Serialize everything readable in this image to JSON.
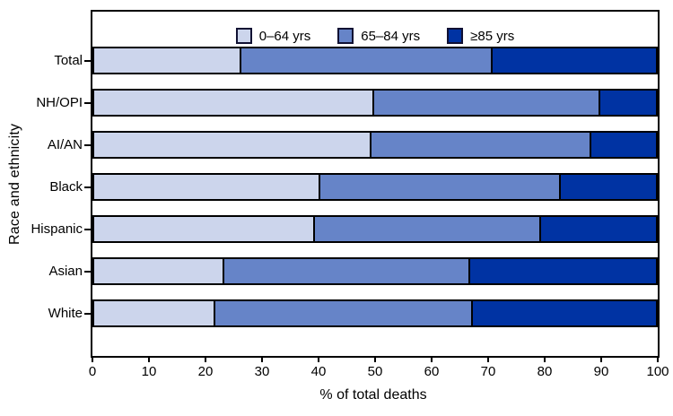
{
  "chart_data": {
    "type": "bar",
    "orientation": "horizontal",
    "stacked": true,
    "title": "",
    "xlabel": "% of total deaths",
    "ylabel": "Race and ethnicity",
    "xlim": [
      0,
      100
    ],
    "x_ticks": [
      0,
      10,
      20,
      30,
      40,
      50,
      60,
      70,
      80,
      90,
      100
    ],
    "grid": false,
    "legend_position": "top-inside",
    "categories": [
      "Total",
      "NH/OPI",
      "AI/AN",
      "Black",
      "Hispanic",
      "Asian",
      "White"
    ],
    "series": [
      {
        "name": "0–64 yrs",
        "color": "#ccd5ec",
        "values": [
          26.0,
          49.5,
          49.0,
          40.0,
          39.0,
          23.0,
          21.5
        ]
      },
      {
        "name": "65–84 yrs",
        "color": "#6684c8",
        "values": [
          44.5,
          40.0,
          39.0,
          42.5,
          40.0,
          43.5,
          45.5
        ]
      },
      {
        "name": "≥85 yrs",
        "color": "#0033a3",
        "values": [
          29.5,
          10.5,
          12.0,
          17.5,
          21.0,
          33.5,
          33.0
        ]
      }
    ],
    "colors": {
      "frame": "#000000",
      "bar_border": "#000000",
      "text": "#000000",
      "background": "#ffffff"
    }
  }
}
